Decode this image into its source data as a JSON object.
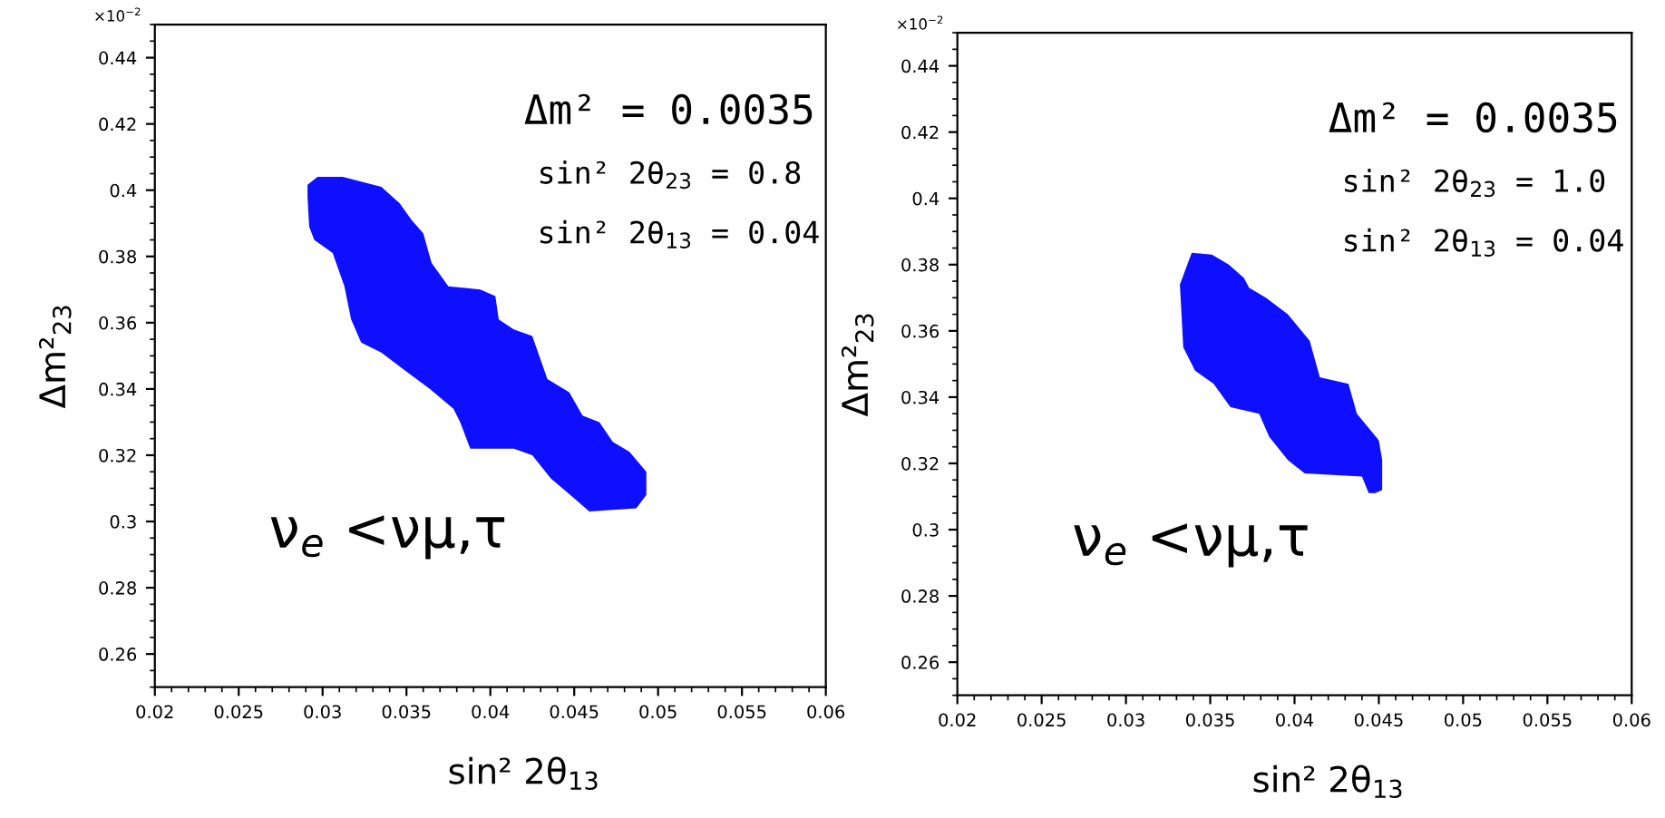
{
  "chart_data": [
    {
      "type": "area",
      "xlabel": "sin² 2θ$_{13}$",
      "ylabel": "Δm²$_{23}$",
      "annotations": [
        "×10$^{−2}$",
        "Δm² = 0.0035",
        "sin² 2θ$_{23}$ = 0.8",
        "sin² 2θ$_{13}$ = 0.04",
        "ν$_{e}$ <νμ,τ"
      ],
      "series": [
        {
          "color": "#0f0fff",
          "x": [
            0.0291,
            0.0297,
            0.0312,
            0.0335,
            0.0346,
            0.0353,
            0.036,
            0.0365,
            0.0375,
            0.0394,
            0.0403,
            0.0405,
            0.0414,
            0.0425,
            0.0434,
            0.0447,
            0.0455,
            0.0465,
            0.0473,
            0.0483,
            0.0493,
            0.0493,
            0.0487,
            0.0459,
            0.045,
            0.0436,
            0.0425,
            0.0414,
            0.0388,
            0.0382,
            0.0378,
            0.0364,
            0.0348,
            0.0335,
            0.0323,
            0.0317,
            0.0313,
            0.0306,
            0.0295,
            0.0292,
            0.0291
          ],
          "values": [
            0.4016,
            0.404,
            0.404,
            0.401,
            0.396,
            0.391,
            0.387,
            0.378,
            0.371,
            0.37,
            0.368,
            0.361,
            0.358,
            0.356,
            0.343,
            0.339,
            0.332,
            0.33,
            0.324,
            0.321,
            0.315,
            0.308,
            0.304,
            0.303,
            0.307,
            0.313,
            0.32,
            0.322,
            0.322,
            0.33,
            0.334,
            0.34,
            0.346,
            0.351,
            0.354,
            0.361,
            0.371,
            0.381,
            0.385,
            0.389,
            0.398
          ]
        }
      ],
      "xlim": [
        0.02,
        0.06
      ],
      "ylim": [
        0.25,
        0.45
      ],
      "xticks": [
        0.02,
        0.025,
        0.03,
        0.035,
        0.04,
        0.045,
        0.05,
        0.055,
        0.06
      ],
      "yticks": [
        0.26,
        0.28,
        0.3,
        0.32,
        0.34,
        0.36,
        0.38,
        0.4,
        0.42,
        0.44
      ],
      "grid": false,
      "legend": false
    },
    {
      "type": "area",
      "xlabel": "sin² 2θ$_{13}$",
      "ylabel": "Δm²$_{23}$",
      "annotations": [
        "×10$^{−2}$",
        "Δm² = 0.0035",
        "sin² 2θ$_{23}$ = 1.0",
        "sin² 2θ$_{13}$ = 0.04",
        "ν$_{e}$ <νμ,τ"
      ],
      "series": [
        {
          "color": "#0f0fff",
          "x": [
            0.0339,
            0.0351,
            0.0361,
            0.037,
            0.0373,
            0.0383,
            0.0396,
            0.0409,
            0.0415,
            0.0432,
            0.0437,
            0.045,
            0.0452,
            0.0452,
            0.0448,
            0.0444,
            0.044,
            0.0406,
            0.0396,
            0.0385,
            0.0379,
            0.0362,
            0.0352,
            0.0341,
            0.0334,
            0.0332
          ],
          "values": [
            0.3836,
            0.383,
            0.38,
            0.376,
            0.373,
            0.37,
            0.365,
            0.357,
            0.346,
            0.344,
            0.335,
            0.327,
            0.321,
            0.312,
            0.311,
            0.311,
            0.316,
            0.317,
            0.321,
            0.328,
            0.335,
            0.337,
            0.344,
            0.348,
            0.355,
            0.374
          ]
        }
      ],
      "xlim": [
        0.02,
        0.06
      ],
      "ylim": [
        0.25,
        0.45
      ],
      "xticks": [
        0.02,
        0.025,
        0.03,
        0.035,
        0.04,
        0.045,
        0.05,
        0.055,
        0.06
      ],
      "yticks": [
        0.26,
        0.28,
        0.3,
        0.32,
        0.34,
        0.36,
        0.38,
        0.4,
        0.42,
        0.44
      ],
      "grid": false,
      "legend": false
    }
  ]
}
